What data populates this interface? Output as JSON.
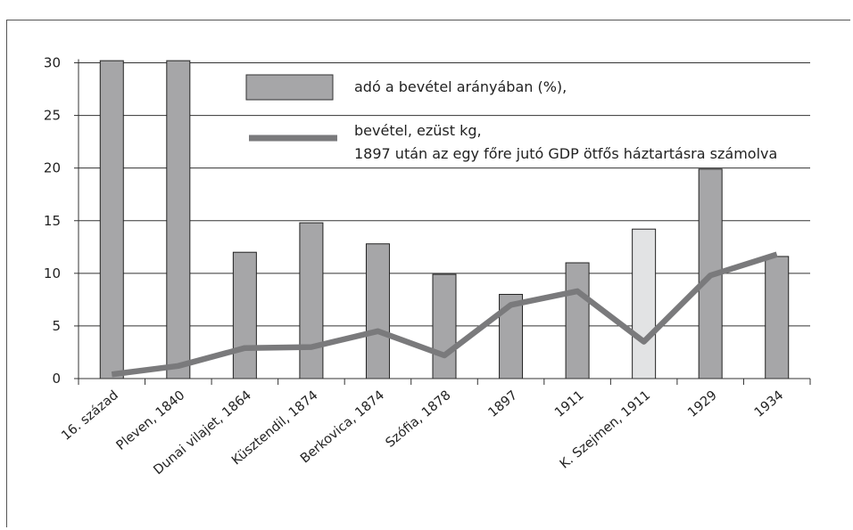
{
  "chart_data": {
    "type": "bar",
    "categories": [
      "16. század",
      "Pleven, 1840",
      "Dunai vilajet, 1864",
      "Küsztendil, 1874",
      "Berkovica, 1874",
      "Szófia, 1878",
      "1897",
      "1911",
      "K. Szejmen, 1911",
      "1929",
      "1934"
    ],
    "series": [
      {
        "name": "adó a bevétel arányában (%),",
        "type": "bar",
        "values": [
          30.2,
          30.2,
          12,
          14.8,
          12.8,
          9.9,
          8,
          11,
          14.2,
          19.9,
          11.6
        ],
        "colors": [
          "#a6a6a8",
          "#a6a6a8",
          "#a6a6a8",
          "#a6a6a8",
          "#a6a6a8",
          "#a6a6a8",
          "#a6a6a8",
          "#a6a6a8",
          "#e2e3e4",
          "#a6a6a8",
          "#a6a6a8"
        ]
      },
      {
        "name_lines": [
          "bevétel, ezüst kg,",
          "1897 után az egy főre jutó GDP ötfős háztartásra számolva"
        ],
        "type": "line",
        "values": [
          0.4,
          1.2,
          2.9,
          3.0,
          4.5,
          2.2,
          7.0,
          8.3,
          3.5,
          9.8,
          11.8
        ],
        "color": "#7a7a7c"
      }
    ],
    "ylim": [
      0,
      30
    ],
    "yticks": [
      "0",
      "5",
      "10",
      "15",
      "20",
      "25",
      "30"
    ],
    "grid": true,
    "legend_position": "top"
  }
}
